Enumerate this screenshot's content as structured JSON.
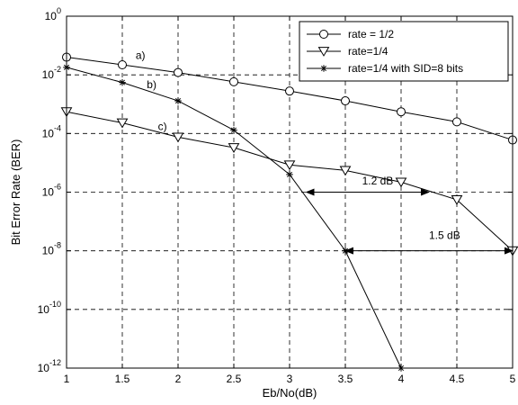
{
  "chart_data": {
    "type": "line",
    "xlabel": "Eb/No(dB)",
    "ylabel": "Bit Error Rate (BER)",
    "xlim": [
      1,
      5
    ],
    "ylim": [
      1e-12,
      1
    ],
    "yscale": "log",
    "grid": true,
    "legend_placement": "top-right",
    "x_ticks": [
      "1",
      "1.5",
      "2",
      "2.5",
      "3",
      "3.5",
      "4",
      "4.5",
      "5"
    ],
    "y_ticks": [
      {
        "base": "10",
        "exp": "0"
      },
      {
        "base": "10",
        "exp": "-2"
      },
      {
        "base": "10",
        "exp": "-4"
      },
      {
        "base": "10",
        "exp": "-6"
      },
      {
        "base": "10",
        "exp": "-8"
      },
      {
        "base": "10",
        "exp": "-10"
      },
      {
        "base": "10",
        "exp": "-12"
      }
    ],
    "series": [
      {
        "name": "rate = 1/2",
        "marker": "circle",
        "x": [
          1,
          1.5,
          2,
          2.5,
          3,
          3.5,
          4,
          4.5,
          5
        ],
        "y": [
          0.04,
          0.022,
          0.012,
          0.0058,
          0.0028,
          0.0013,
          0.00055,
          0.00025,
          6e-05
        ]
      },
      {
        "name": "rate=1/4",
        "marker": "triangle-down",
        "x": [
          1,
          1.5,
          2,
          2.5,
          3,
          3.5,
          4,
          4.5,
          5
        ],
        "y": [
          0.00055,
          0.00023,
          7.5e-05,
          3.3e-05,
          8.5e-06,
          5.5e-06,
          2.2e-06,
          5.5e-07,
          1e-08
        ]
      },
      {
        "name": "rate=1/4 with SID=8 bits",
        "marker": "star",
        "x": [
          1,
          1.5,
          2,
          2.5,
          3,
          3.5,
          4
        ],
        "y": [
          0.018,
          0.0055,
          0.0013,
          0.00013,
          4e-06,
          1e-08,
          1e-12
        ]
      }
    ],
    "annotations": [
      {
        "text": "a)",
        "x": 1.62,
        "y": 0.035
      },
      {
        "text": "b)",
        "x": 1.72,
        "y": 0.0035
      },
      {
        "text": "c)",
        "x": 1.82,
        "y": 0.00013
      },
      {
        "text": "1.2 dB",
        "x": 3.65,
        "y": 1.8e-06
      },
      {
        "text": "1.5 dB",
        "x": 4.25,
        "y": 2.5e-08
      }
    ],
    "arrows": [
      {
        "x1": 3.15,
        "x2": 4.25,
        "y": 1e-06
      },
      {
        "x1": 3.5,
        "x2": 5.0,
        "y": 1e-08
      }
    ]
  }
}
